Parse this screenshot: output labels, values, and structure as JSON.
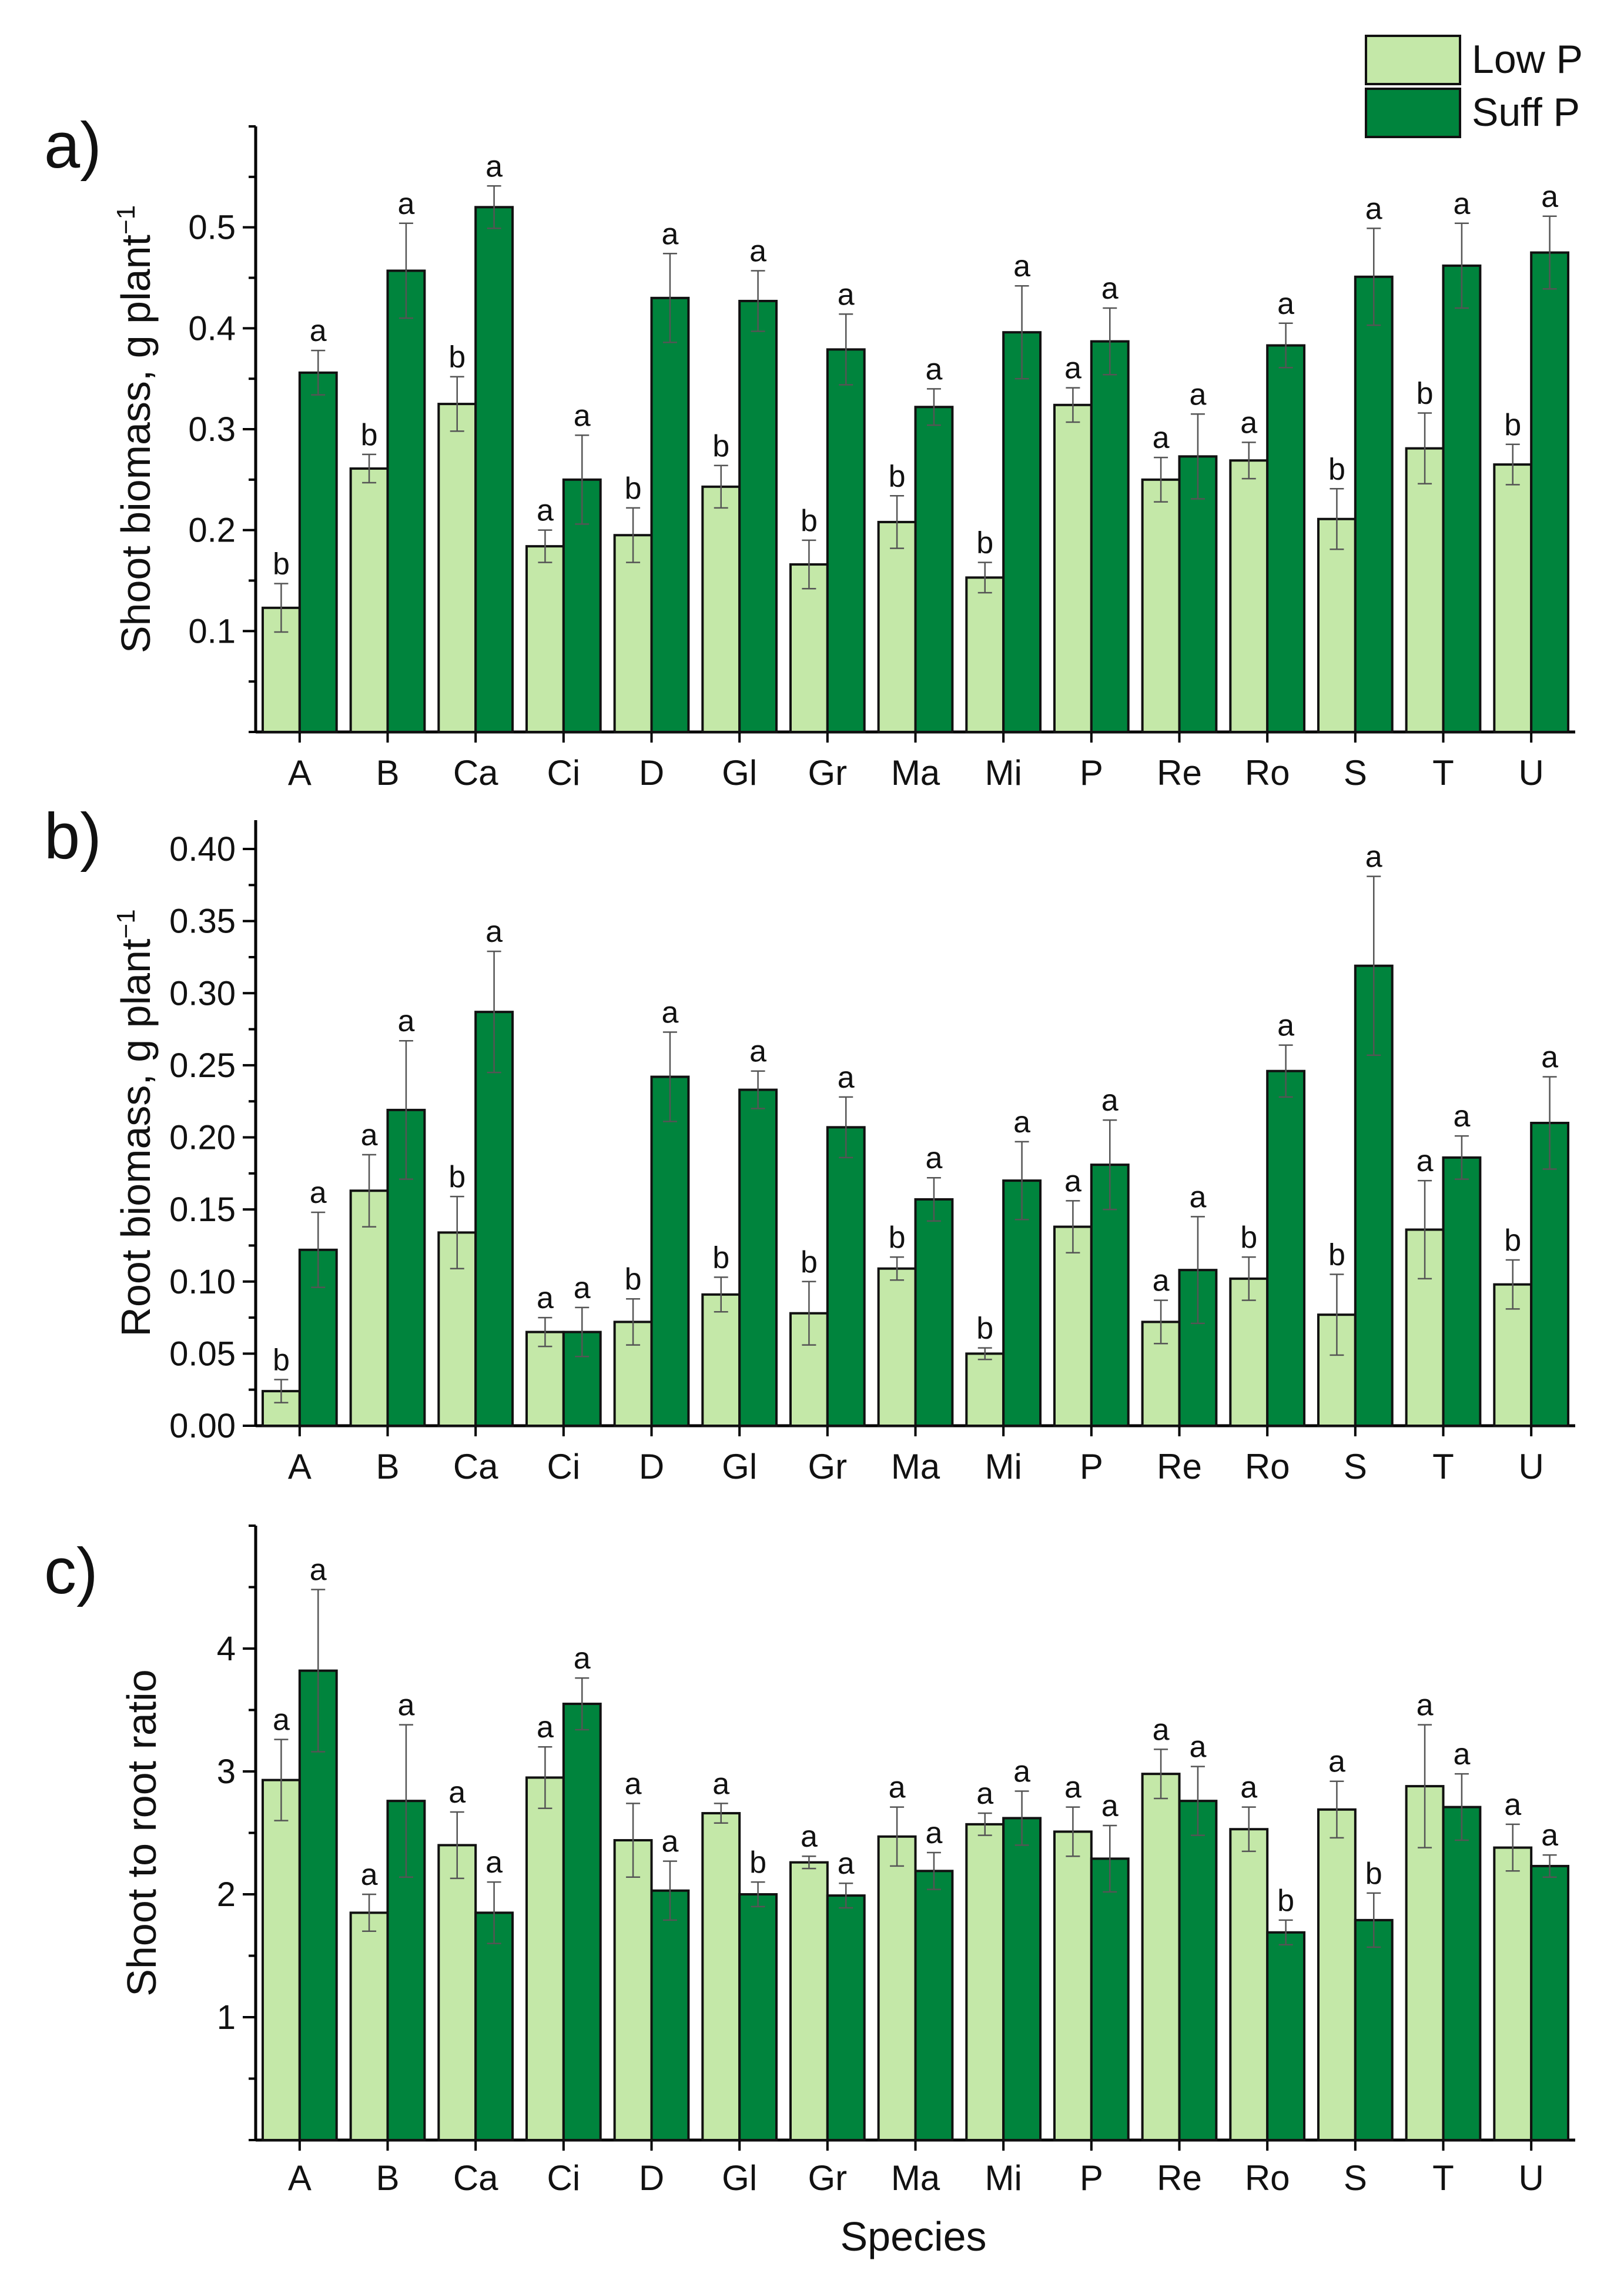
{
  "legend": {
    "low": {
      "label": "Low P",
      "color": "#c4e8a8"
    },
    "suff": {
      "label": "Suff P",
      "color": "#00843d"
    }
  },
  "xlabel": "Species",
  "chart_data": [
    {
      "type": "bar",
      "panel": "a)",
      "ylabel": "Shoot biomass, g plant",
      "ylabel_sup": "−1",
      "ylim": [
        0,
        0.6
      ],
      "yticks": [
        0.1,
        0.2,
        0.3,
        0.4,
        0.5
      ],
      "ytick_labels": [
        "0.1",
        "0.2",
        "0.3",
        "0.4",
        "0.5"
      ],
      "categories": [
        "A",
        "B",
        "Ca",
        "Ci",
        "D",
        "Gl",
        "Gr",
        "Ma",
        "Mi",
        "P",
        "Re",
        "Ro",
        "S",
        "T",
        "U"
      ],
      "series": [
        {
          "name": "Low P",
          "values": [
            0.123,
            0.261,
            0.325,
            0.184,
            0.195,
            0.243,
            0.166,
            0.208,
            0.153,
            0.324,
            0.25,
            0.269,
            0.211,
            0.281,
            0.265
          ],
          "errors": [
            0.024,
            0.014,
            0.027,
            0.016,
            0.027,
            0.021,
            0.024,
            0.026,
            0.015,
            0.017,
            0.022,
            0.018,
            0.03,
            0.035,
            0.02
          ],
          "letters": [
            "b",
            "b",
            "b",
            "a",
            "b",
            "b",
            "b",
            "b",
            "b",
            "a",
            "a",
            "a",
            "b",
            "b",
            "b"
          ]
        },
        {
          "name": "Suff P",
          "values": [
            0.356,
            0.457,
            0.52,
            0.25,
            0.43,
            0.427,
            0.379,
            0.322,
            0.396,
            0.387,
            0.273,
            0.383,
            0.451,
            0.462,
            0.475
          ],
          "errors": [
            0.022,
            0.047,
            0.021,
            0.044,
            0.044,
            0.03,
            0.035,
            0.018,
            0.046,
            0.033,
            0.042,
            0.022,
            0.048,
            0.042,
            0.036
          ],
          "letters": [
            "a",
            "a",
            "a",
            "a",
            "a",
            "a",
            "a",
            "a",
            "a",
            "a",
            "a",
            "a",
            "a",
            "a",
            "a"
          ]
        }
      ]
    },
    {
      "type": "bar",
      "panel": "b)",
      "ylabel": "Root biomass, g plant",
      "ylabel_sup": "−1",
      "ylim": [
        0,
        0.42
      ],
      "yticks": [
        0,
        0.05,
        0.1,
        0.15,
        0.2,
        0.25,
        0.3,
        0.35,
        0.4
      ],
      "ytick_labels": [
        "0.00",
        "0.05",
        "0.10",
        "0.15",
        "0.20",
        "0.25",
        "0.30",
        "0.35",
        "0.40"
      ],
      "categories": [
        "A",
        "B",
        "Ca",
        "Ci",
        "D",
        "Gl",
        "Gr",
        "Ma",
        "Mi",
        "P",
        "Re",
        "Ro",
        "S",
        "T",
        "U"
      ],
      "series": [
        {
          "name": "Low P",
          "values": [
            0.024,
            0.163,
            0.134,
            0.065,
            0.072,
            0.091,
            0.078,
            0.109,
            0.05,
            0.138,
            0.072,
            0.102,
            0.077,
            0.136,
            0.098
          ],
          "errors": [
            0.008,
            0.025,
            0.025,
            0.01,
            0.016,
            0.012,
            0.022,
            0.008,
            0.004,
            0.018,
            0.015,
            0.015,
            0.028,
            0.034,
            0.017
          ],
          "letters": [
            "b",
            "a",
            "b",
            "a",
            "b",
            "b",
            "b",
            "b",
            "b",
            "a",
            "a",
            "b",
            "b",
            "a",
            "b"
          ]
        },
        {
          "name": "Suff P",
          "values": [
            0.122,
            0.219,
            0.287,
            0.065,
            0.242,
            0.233,
            0.207,
            0.157,
            0.17,
            0.181,
            0.108,
            0.246,
            0.319,
            0.186,
            0.21
          ],
          "errors": [
            0.026,
            0.048,
            0.042,
            0.017,
            0.031,
            0.013,
            0.021,
            0.015,
            0.027,
            0.031,
            0.037,
            0.018,
            0.062,
            0.015,
            0.032
          ],
          "letters": [
            "a",
            "a",
            "a",
            "a",
            "a",
            "a",
            "a",
            "a",
            "a",
            "a",
            "a",
            "a",
            "a",
            "a",
            "a"
          ]
        }
      ]
    },
    {
      "type": "bar",
      "panel": "c)",
      "ylabel": "Shoot to root ratio",
      "ylabel_sup": "",
      "ylim": [
        0,
        5
      ],
      "yticks": [
        1,
        2,
        3,
        4
      ],
      "ytick_labels": [
        "1",
        "2",
        "3",
        "4"
      ],
      "categories": [
        "A",
        "B",
        "Ca",
        "Ci",
        "D",
        "Gl",
        "Gr",
        "Ma",
        "Mi",
        "P",
        "Re",
        "Ro",
        "S",
        "T",
        "U"
      ],
      "series": [
        {
          "name": "Low P",
          "values": [
            2.93,
            1.85,
            2.4,
            2.95,
            2.44,
            2.66,
            2.26,
            2.47,
            2.57,
            2.51,
            2.98,
            2.53,
            2.69,
            2.88,
            2.38
          ],
          "errors": [
            0.33,
            0.15,
            0.27,
            0.25,
            0.3,
            0.08,
            0.05,
            0.24,
            0.09,
            0.2,
            0.2,
            0.18,
            0.23,
            0.5,
            0.19
          ],
          "letters": [
            "a",
            "a",
            "a",
            "a",
            "a",
            "a",
            "a",
            "a",
            "a",
            "a",
            "a",
            "a",
            "a",
            "a",
            "a"
          ]
        },
        {
          "name": "Suff P",
          "values": [
            3.82,
            2.76,
            1.85,
            3.55,
            2.03,
            2.0,
            1.99,
            2.19,
            2.62,
            2.29,
            2.76,
            1.69,
            1.79,
            2.71,
            2.23
          ],
          "errors": [
            0.66,
            0.62,
            0.25,
            0.21,
            0.24,
            0.1,
            0.1,
            0.15,
            0.22,
            0.27,
            0.28,
            0.1,
            0.22,
            0.27,
            0.09
          ],
          "letters": [
            "a",
            "a",
            "a",
            "a",
            "a",
            "b",
            "a",
            "a",
            "a",
            "a",
            "a",
            "b",
            "b",
            "a",
            "a"
          ]
        }
      ]
    }
  ]
}
